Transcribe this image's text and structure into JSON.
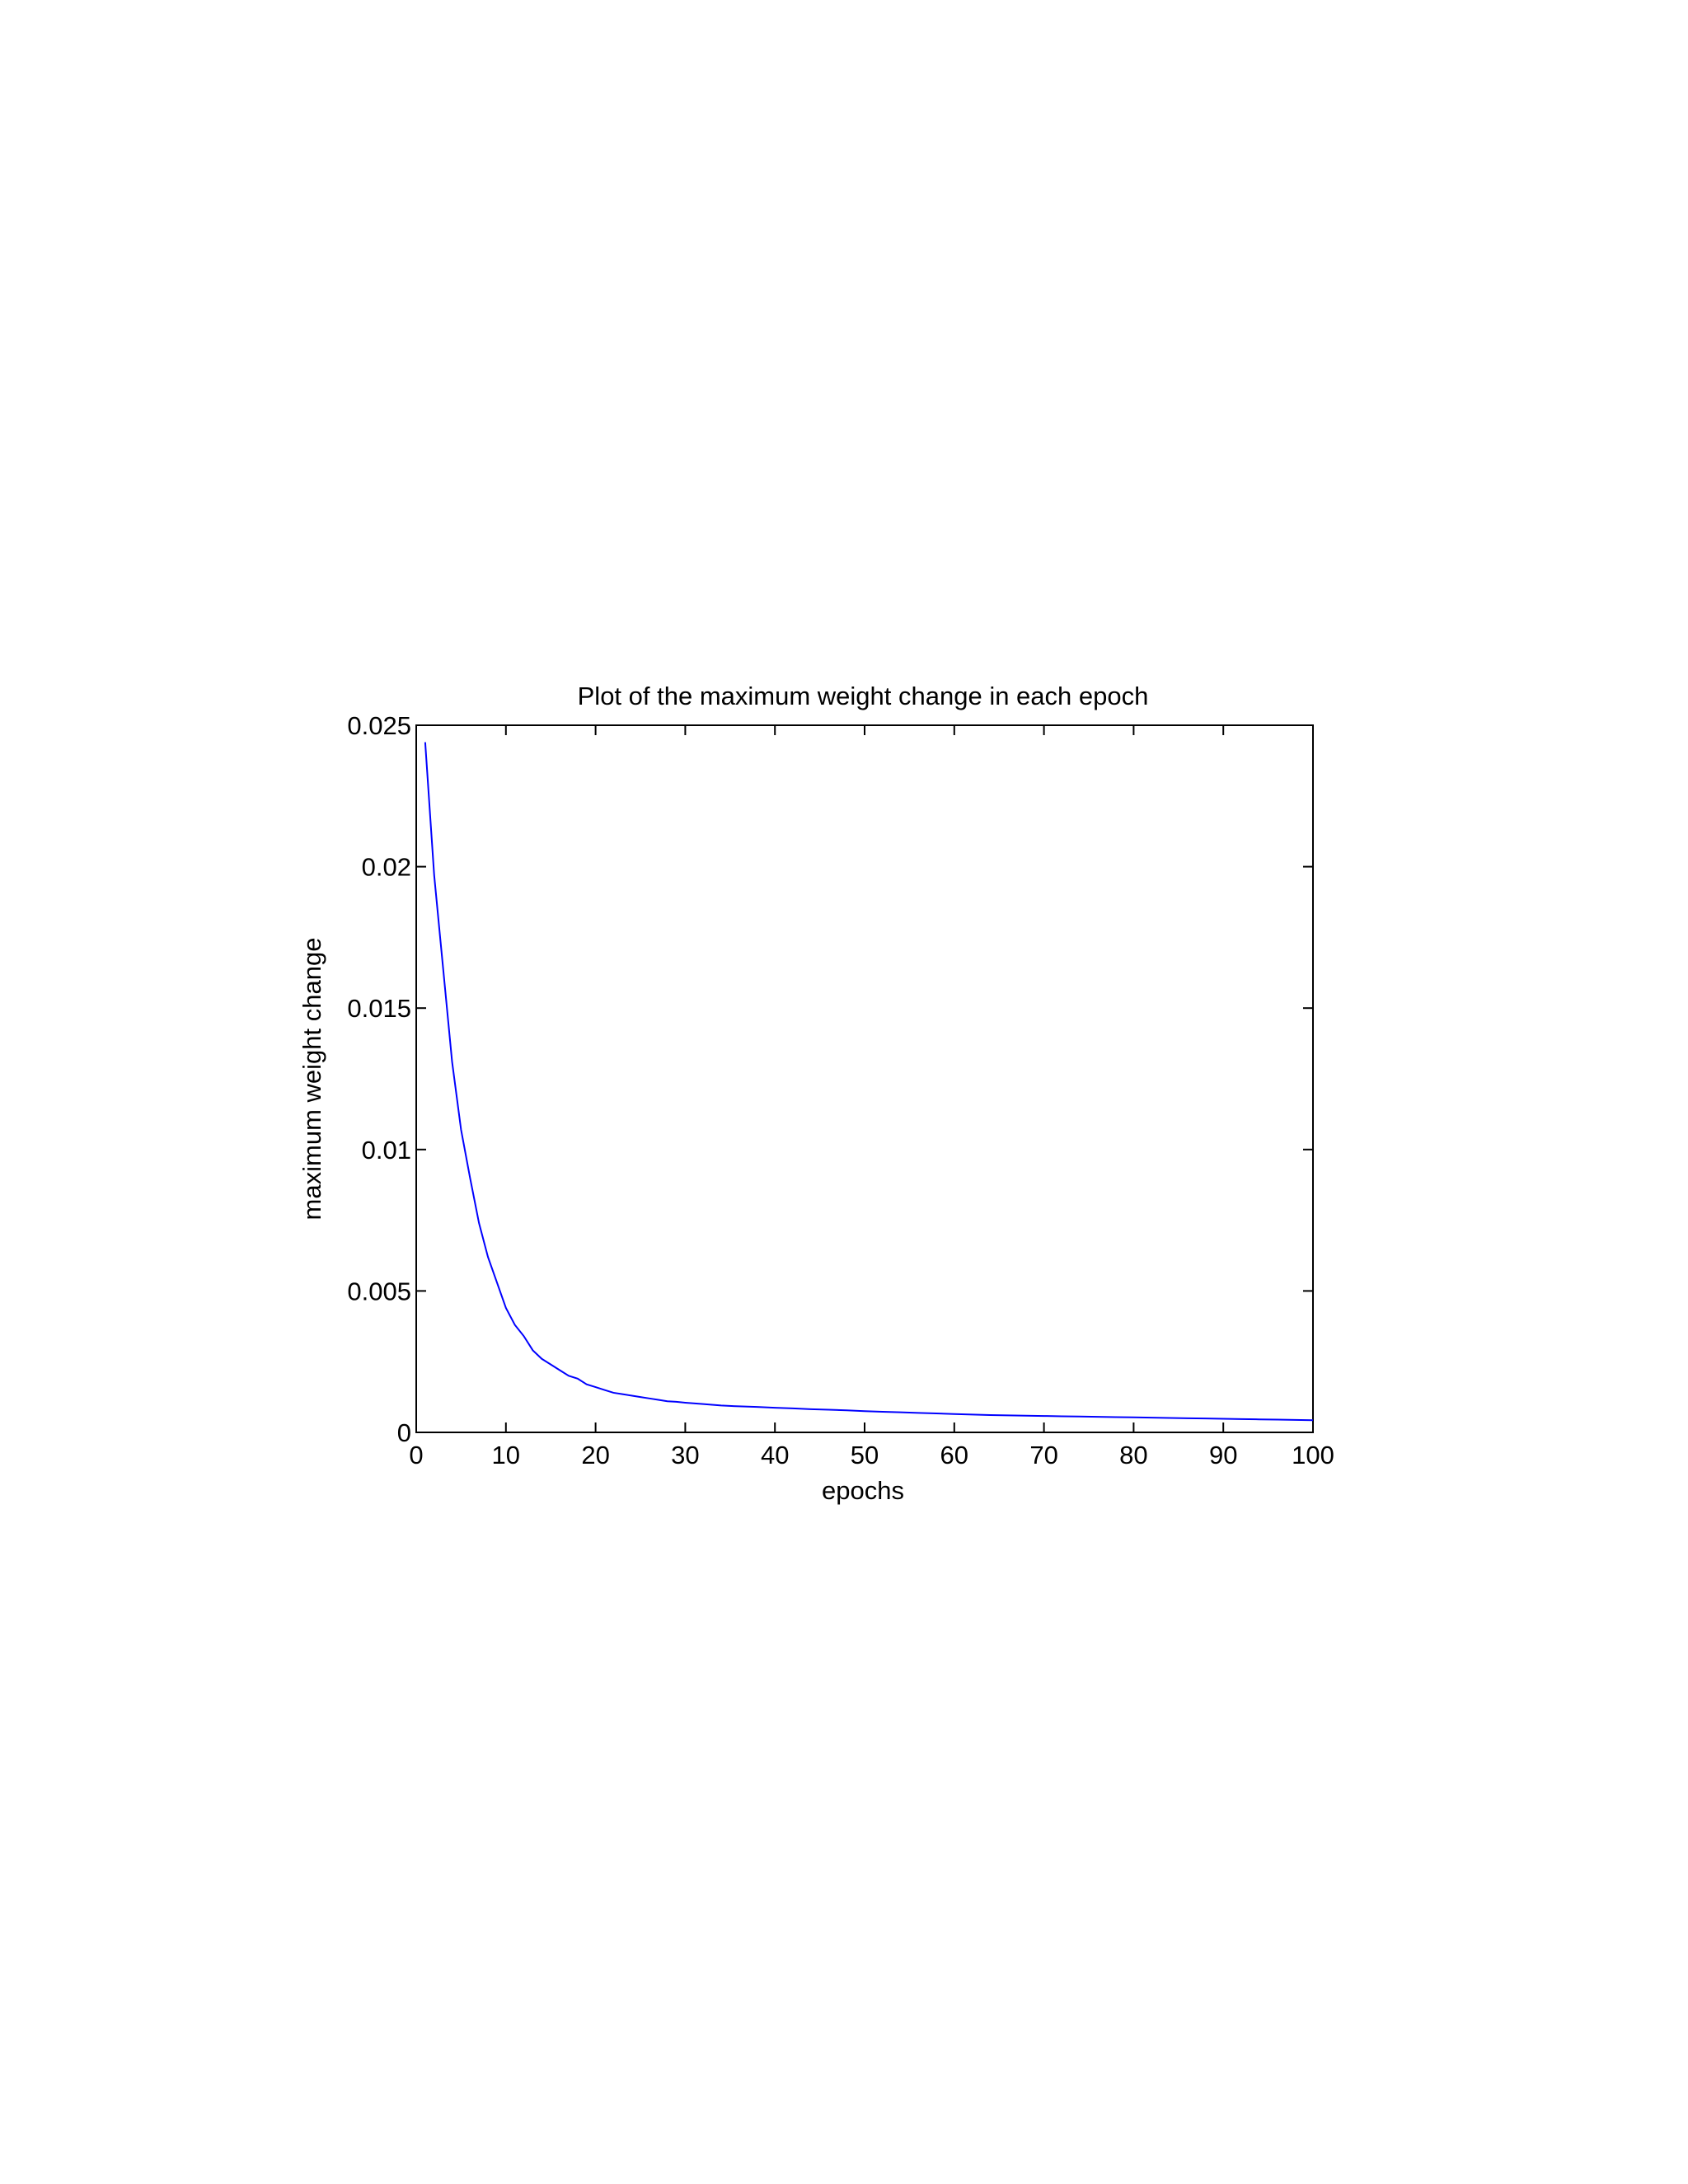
{
  "chart_data": {
    "type": "line",
    "title": "Plot of the maximum weight change in each epoch",
    "xlabel": "epochs",
    "ylabel": "maximum weight change",
    "xlim": [
      0,
      100
    ],
    "ylim": [
      0,
      0.025
    ],
    "xticks": [
      0,
      10,
      20,
      30,
      40,
      50,
      60,
      70,
      80,
      90,
      100
    ],
    "xtick_labels": [
      "0",
      "10",
      "20",
      "30",
      "40",
      "50",
      "60",
      "70",
      "80",
      "90",
      "100"
    ],
    "yticks": [
      0,
      0.005,
      0.01,
      0.015,
      0.02,
      0.025
    ],
    "ytick_labels": [
      "0",
      "0.005",
      "0.01",
      "0.015",
      "0.02",
      "0.025"
    ],
    "grid": false,
    "series": [
      {
        "color": "#0000ff",
        "x": [
          1,
          2,
          3,
          4,
          5,
          6,
          7,
          8,
          9,
          10,
          11,
          12,
          13,
          14,
          15,
          16,
          17,
          18,
          19,
          20,
          21,
          22,
          23,
          24,
          25,
          26,
          27,
          28,
          29,
          30,
          32,
          34,
          36,
          38,
          40,
          42,
          44,
          46,
          48,
          50,
          52,
          54,
          56,
          58,
          60,
          62,
          64,
          66,
          68,
          70,
          72,
          74,
          76,
          78,
          80,
          82,
          84,
          86,
          88,
          90,
          92,
          94,
          96,
          98,
          100
        ],
        "values": [
          0.0244,
          0.0197,
          0.0164,
          0.0131,
          0.0107,
          0.009,
          0.0074,
          0.0062,
          0.0053,
          0.0044,
          0.0038,
          0.0034,
          0.0029,
          0.0026,
          0.0024,
          0.0022,
          0.002,
          0.0019,
          0.0017,
          0.0016,
          0.0015,
          0.0014,
          0.00135,
          0.0013,
          0.00125,
          0.0012,
          0.00115,
          0.0011,
          0.00108,
          0.00105,
          0.001,
          0.00095,
          0.00092,
          0.0009,
          0.00087,
          0.00085,
          0.00082,
          0.0008,
          0.00078,
          0.00075,
          0.00073,
          0.00071,
          0.00069,
          0.00067,
          0.00065,
          0.00063,
          0.00061,
          0.0006,
          0.00059,
          0.00058,
          0.00057,
          0.00056,
          0.00055,
          0.00054,
          0.00053,
          0.00052,
          0.00051,
          0.0005,
          0.00049,
          0.00048,
          0.00047,
          0.00046,
          0.00045,
          0.00044,
          0.00043
        ]
      }
    ]
  }
}
